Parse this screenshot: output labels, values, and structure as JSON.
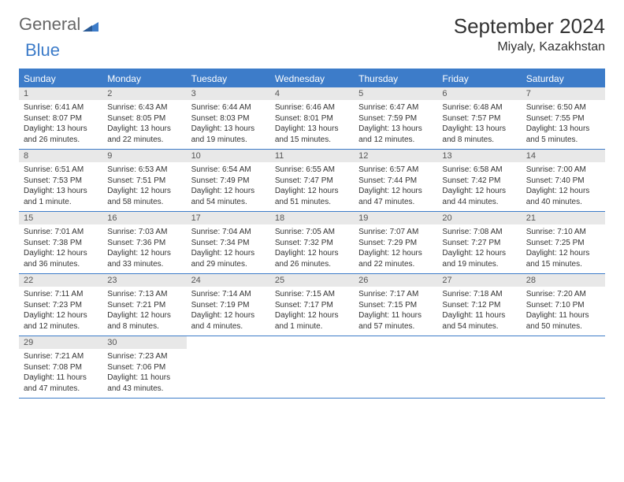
{
  "brand": {
    "part1": "General",
    "part2": "Blue"
  },
  "title": "September 2024",
  "location": "Miyaly, Kazakhstan",
  "colors": {
    "header_bg": "#3d7cc9",
    "header_text": "#ffffff",
    "daynum_bg": "#e8e8e8",
    "text": "#333333",
    "page_bg": "#ffffff",
    "brand_gray": "#666666",
    "brand_blue": "#3d7cc9"
  },
  "fonts": {
    "title_size_pt": 20,
    "location_size_pt": 12,
    "weekday_size_pt": 9,
    "daynum_size_pt": 8,
    "body_size_pt": 7.5
  },
  "weekdays": [
    "Sunday",
    "Monday",
    "Tuesday",
    "Wednesday",
    "Thursday",
    "Friday",
    "Saturday"
  ],
  "weeks": [
    [
      {
        "num": "1",
        "sunrise": "Sunrise: 6:41 AM",
        "sunset": "Sunset: 8:07 PM",
        "daylight": "Daylight: 13 hours and 26 minutes."
      },
      {
        "num": "2",
        "sunrise": "Sunrise: 6:43 AM",
        "sunset": "Sunset: 8:05 PM",
        "daylight": "Daylight: 13 hours and 22 minutes."
      },
      {
        "num": "3",
        "sunrise": "Sunrise: 6:44 AM",
        "sunset": "Sunset: 8:03 PM",
        "daylight": "Daylight: 13 hours and 19 minutes."
      },
      {
        "num": "4",
        "sunrise": "Sunrise: 6:46 AM",
        "sunset": "Sunset: 8:01 PM",
        "daylight": "Daylight: 13 hours and 15 minutes."
      },
      {
        "num": "5",
        "sunrise": "Sunrise: 6:47 AM",
        "sunset": "Sunset: 7:59 PM",
        "daylight": "Daylight: 13 hours and 12 minutes."
      },
      {
        "num": "6",
        "sunrise": "Sunrise: 6:48 AM",
        "sunset": "Sunset: 7:57 PM",
        "daylight": "Daylight: 13 hours and 8 minutes."
      },
      {
        "num": "7",
        "sunrise": "Sunrise: 6:50 AM",
        "sunset": "Sunset: 7:55 PM",
        "daylight": "Daylight: 13 hours and 5 minutes."
      }
    ],
    [
      {
        "num": "8",
        "sunrise": "Sunrise: 6:51 AM",
        "sunset": "Sunset: 7:53 PM",
        "daylight": "Daylight: 13 hours and 1 minute."
      },
      {
        "num": "9",
        "sunrise": "Sunrise: 6:53 AM",
        "sunset": "Sunset: 7:51 PM",
        "daylight": "Daylight: 12 hours and 58 minutes."
      },
      {
        "num": "10",
        "sunrise": "Sunrise: 6:54 AM",
        "sunset": "Sunset: 7:49 PM",
        "daylight": "Daylight: 12 hours and 54 minutes."
      },
      {
        "num": "11",
        "sunrise": "Sunrise: 6:55 AM",
        "sunset": "Sunset: 7:47 PM",
        "daylight": "Daylight: 12 hours and 51 minutes."
      },
      {
        "num": "12",
        "sunrise": "Sunrise: 6:57 AM",
        "sunset": "Sunset: 7:44 PM",
        "daylight": "Daylight: 12 hours and 47 minutes."
      },
      {
        "num": "13",
        "sunrise": "Sunrise: 6:58 AM",
        "sunset": "Sunset: 7:42 PM",
        "daylight": "Daylight: 12 hours and 44 minutes."
      },
      {
        "num": "14",
        "sunrise": "Sunrise: 7:00 AM",
        "sunset": "Sunset: 7:40 PM",
        "daylight": "Daylight: 12 hours and 40 minutes."
      }
    ],
    [
      {
        "num": "15",
        "sunrise": "Sunrise: 7:01 AM",
        "sunset": "Sunset: 7:38 PM",
        "daylight": "Daylight: 12 hours and 36 minutes."
      },
      {
        "num": "16",
        "sunrise": "Sunrise: 7:03 AM",
        "sunset": "Sunset: 7:36 PM",
        "daylight": "Daylight: 12 hours and 33 minutes."
      },
      {
        "num": "17",
        "sunrise": "Sunrise: 7:04 AM",
        "sunset": "Sunset: 7:34 PM",
        "daylight": "Daylight: 12 hours and 29 minutes."
      },
      {
        "num": "18",
        "sunrise": "Sunrise: 7:05 AM",
        "sunset": "Sunset: 7:32 PM",
        "daylight": "Daylight: 12 hours and 26 minutes."
      },
      {
        "num": "19",
        "sunrise": "Sunrise: 7:07 AM",
        "sunset": "Sunset: 7:29 PM",
        "daylight": "Daylight: 12 hours and 22 minutes."
      },
      {
        "num": "20",
        "sunrise": "Sunrise: 7:08 AM",
        "sunset": "Sunset: 7:27 PM",
        "daylight": "Daylight: 12 hours and 19 minutes."
      },
      {
        "num": "21",
        "sunrise": "Sunrise: 7:10 AM",
        "sunset": "Sunset: 7:25 PM",
        "daylight": "Daylight: 12 hours and 15 minutes."
      }
    ],
    [
      {
        "num": "22",
        "sunrise": "Sunrise: 7:11 AM",
        "sunset": "Sunset: 7:23 PM",
        "daylight": "Daylight: 12 hours and 12 minutes."
      },
      {
        "num": "23",
        "sunrise": "Sunrise: 7:13 AM",
        "sunset": "Sunset: 7:21 PM",
        "daylight": "Daylight: 12 hours and 8 minutes."
      },
      {
        "num": "24",
        "sunrise": "Sunrise: 7:14 AM",
        "sunset": "Sunset: 7:19 PM",
        "daylight": "Daylight: 12 hours and 4 minutes."
      },
      {
        "num": "25",
        "sunrise": "Sunrise: 7:15 AM",
        "sunset": "Sunset: 7:17 PM",
        "daylight": "Daylight: 12 hours and 1 minute."
      },
      {
        "num": "26",
        "sunrise": "Sunrise: 7:17 AM",
        "sunset": "Sunset: 7:15 PM",
        "daylight": "Daylight: 11 hours and 57 minutes."
      },
      {
        "num": "27",
        "sunrise": "Sunrise: 7:18 AM",
        "sunset": "Sunset: 7:12 PM",
        "daylight": "Daylight: 11 hours and 54 minutes."
      },
      {
        "num": "28",
        "sunrise": "Sunrise: 7:20 AM",
        "sunset": "Sunset: 7:10 PM",
        "daylight": "Daylight: 11 hours and 50 minutes."
      }
    ],
    [
      {
        "num": "29",
        "sunrise": "Sunrise: 7:21 AM",
        "sunset": "Sunset: 7:08 PM",
        "daylight": "Daylight: 11 hours and 47 minutes."
      },
      {
        "num": "30",
        "sunrise": "Sunrise: 7:23 AM",
        "sunset": "Sunset: 7:06 PM",
        "daylight": "Daylight: 11 hours and 43 minutes."
      },
      null,
      null,
      null,
      null,
      null
    ]
  ]
}
